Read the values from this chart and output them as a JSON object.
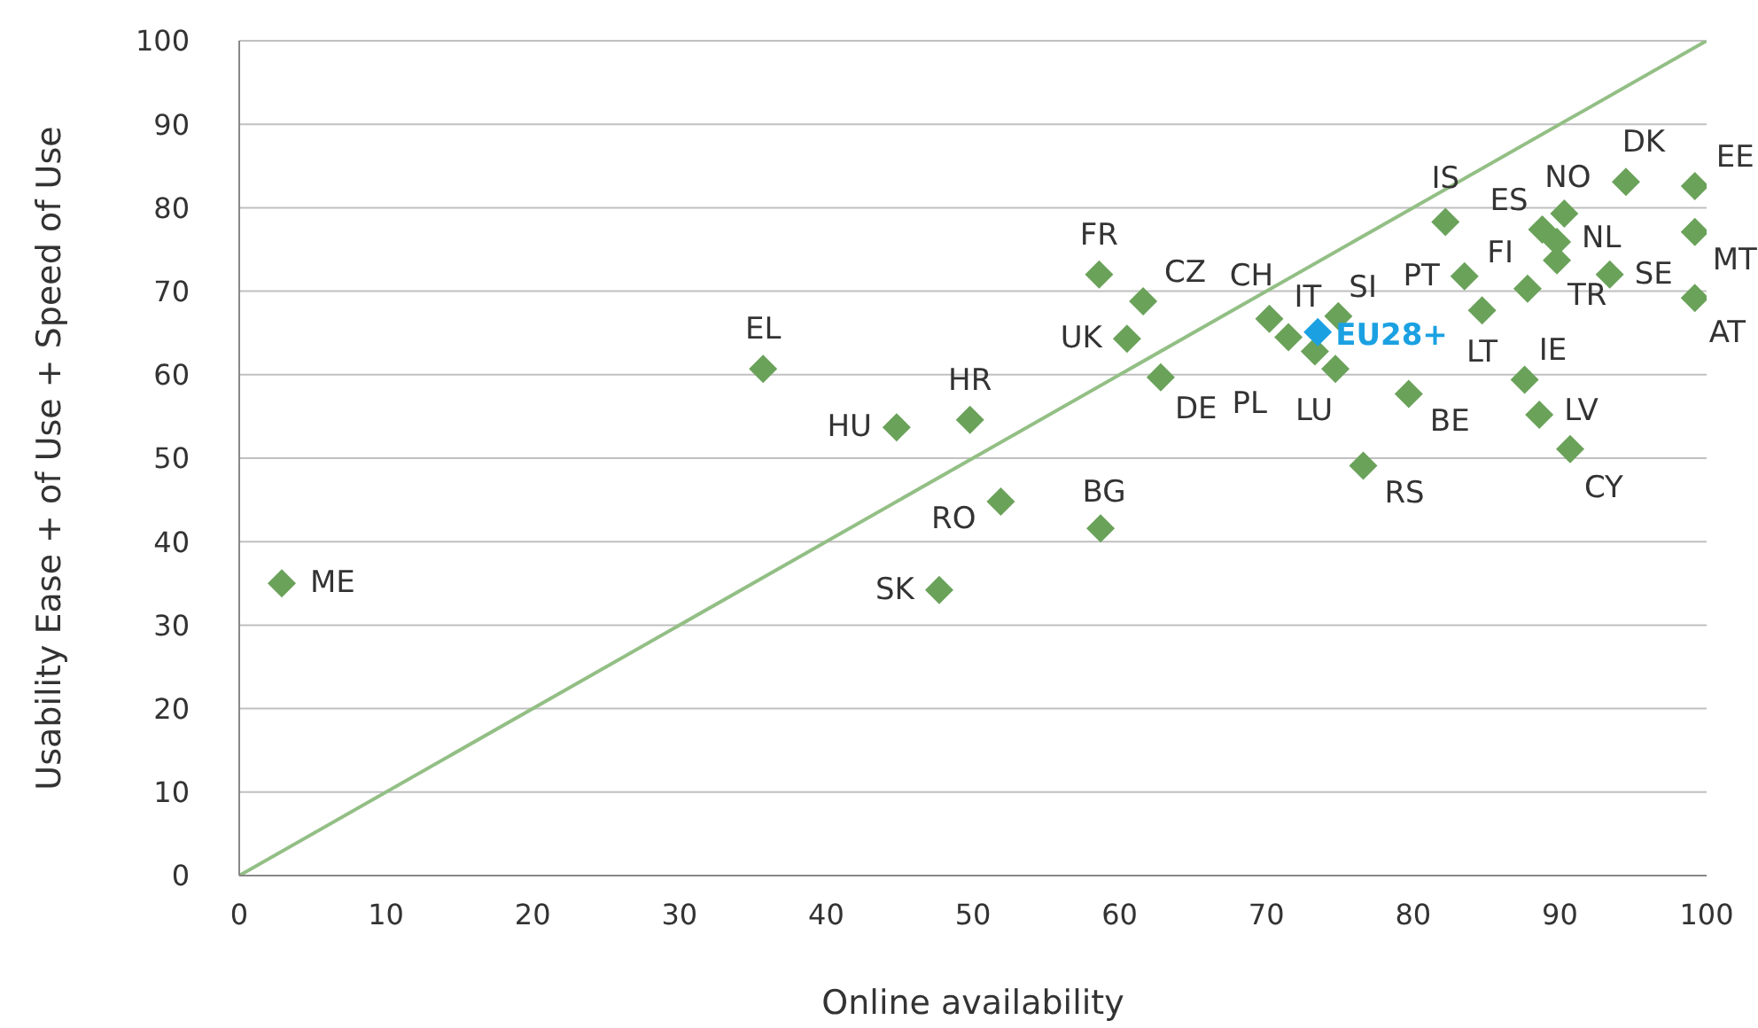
{
  "chart_data": {
    "type": "scatter",
    "xlabel": "Online availability",
    "ylabel": "Usability Ease + of Use + Speed of Use",
    "xlim": [
      0,
      100
    ],
    "ylim": [
      0,
      100
    ],
    "xticks": [
      0,
      10,
      20,
      30,
      40,
      50,
      60,
      70,
      80,
      90,
      100
    ],
    "yticks": [
      0,
      10,
      20,
      30,
      40,
      50,
      60,
      70,
      80,
      90,
      100
    ],
    "grid": "y",
    "marker": "diamond",
    "series": [
      {
        "type": "line",
        "marker": "none",
        "color": "#93bf85",
        "x": [
          0,
          100
        ],
        "values": [
          0,
          100
        ]
      },
      {
        "color": "#6aa25a",
        "x": [
          2.9,
          35.7,
          44.8,
          49.8,
          51.9,
          47.7,
          58.7,
          58.6,
          61.6,
          60.5,
          62.8,
          70.2,
          71.5,
          73.3,
          74.9,
          74.7,
          76.6,
          79.7,
          82.2,
          83.5,
          84.7,
          87.8,
          89.8,
          88.8,
          90.3,
          89.8,
          93.4,
          94.5,
          99.2,
          99.2,
          99.2,
          87.6,
          88.6,
          90.7
        ],
        "values": [
          35.0,
          60.7,
          53.7,
          54.6,
          44.8,
          34.2,
          41.6,
          72.0,
          68.8,
          64.3,
          59.7,
          66.7,
          64.5,
          62.8,
          67.0,
          60.7,
          49.1,
          57.7,
          78.3,
          71.8,
          67.7,
          70.3,
          73.7,
          77.4,
          79.3,
          75.9,
          72.0,
          83.1,
          82.6,
          77.1,
          69.2,
          59.4,
          55.2,
          51.1
        ]
      },
      {
        "color": "#1ba1e2",
        "x": [
          73.5
        ],
        "values": [
          65.1
        ]
      }
    ],
    "annotations": [
      {
        "text": "ME",
        "x": 2.9,
        "y": 35.0
      },
      {
        "text": "EL",
        "x": 35.7,
        "y": 60.7
      },
      {
        "text": "HU",
        "x": 44.8,
        "y": 53.7
      },
      {
        "text": "HR",
        "x": 49.8,
        "y": 54.6
      },
      {
        "text": "RO",
        "x": 51.9,
        "y": 44.8
      },
      {
        "text": "SK",
        "x": 47.7,
        "y": 34.2
      },
      {
        "text": "BG",
        "x": 58.7,
        "y": 41.6
      },
      {
        "text": "FR",
        "x": 58.6,
        "y": 72.0
      },
      {
        "text": "CZ",
        "x": 61.6,
        "y": 68.8
      },
      {
        "text": "UK",
        "x": 60.5,
        "y": 64.3
      },
      {
        "text": "DE",
        "x": 62.8,
        "y": 59.7
      },
      {
        "text": "CH",
        "x": 70.2,
        "y": 66.7
      },
      {
        "text": "PL",
        "x": 71.5,
        "y": 64.5
      },
      {
        "text": "IT",
        "x": 73.3,
        "y": 62.8
      },
      {
        "text": "SI",
        "x": 74.9,
        "y": 67.0
      },
      {
        "text": "LU",
        "x": 74.7,
        "y": 60.7
      },
      {
        "text": "RS",
        "x": 76.6,
        "y": 49.1
      },
      {
        "text": "BE",
        "x": 79.7,
        "y": 57.7
      },
      {
        "text": "IS",
        "x": 82.2,
        "y": 78.3
      },
      {
        "text": "PT",
        "x": 83.5,
        "y": 71.8
      },
      {
        "text": "LT",
        "x": 84.7,
        "y": 67.7
      },
      {
        "text": "FI",
        "x": 87.8,
        "y": 70.3
      },
      {
        "text": "TR",
        "x": 89.8,
        "y": 73.7
      },
      {
        "text": "ES",
        "x": 88.8,
        "y": 77.4
      },
      {
        "text": "NO",
        "x": 90.3,
        "y": 79.3
      },
      {
        "text": "NL",
        "x": 89.8,
        "y": 75.9
      },
      {
        "text": "SE",
        "x": 93.4,
        "y": 72.0
      },
      {
        "text": "DK",
        "x": 94.5,
        "y": 83.1
      },
      {
        "text": "EE",
        "x": 99.2,
        "y": 82.6
      },
      {
        "text": "MT",
        "x": 99.2,
        "y": 77.1
      },
      {
        "text": "AT",
        "x": 99.2,
        "y": 69.2
      },
      {
        "text": "IE",
        "x": 87.6,
        "y": 59.4
      },
      {
        "text": "LV",
        "x": 88.6,
        "y": 55.2
      },
      {
        "text": "CY",
        "x": 90.7,
        "y": 51.1
      },
      {
        "text": "EU28+",
        "x": 73.5,
        "y": 65.1
      }
    ]
  }
}
